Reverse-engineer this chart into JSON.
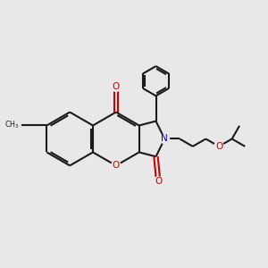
{
  "bg_color": "#e8e8e8",
  "bond_color": "#1a1a1a",
  "o_color": "#cc0000",
  "n_color": "#0000cc",
  "lw": 1.5,
  "lw_thin": 1.1,
  "font_size": 7.5,
  "figsize": [
    3.0,
    3.0
  ],
  "dpi": 100,
  "xlim": [
    -2.3,
    3.1
  ],
  "ylim": [
    -1.5,
    1.7
  ]
}
